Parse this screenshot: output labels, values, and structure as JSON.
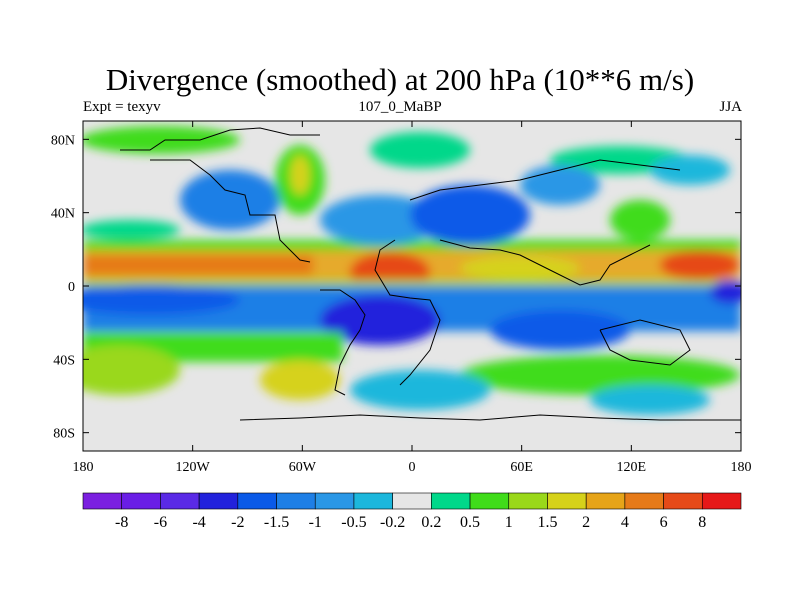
{
  "title": "Divergence (smoothed) at 200 hPa (10**6 m/s)",
  "subtitle_left": "Expt = texyv",
  "subtitle_center": "107_0_MaBP",
  "subtitle_right": "JJA",
  "map": {
    "lon_range": [
      -180,
      180
    ],
    "lat_range": [
      -90,
      90
    ],
    "x_ticks": [
      {
        "lon": -180,
        "label": "180"
      },
      {
        "lon": -120,
        "label": "120W"
      },
      {
        "lon": -60,
        "label": "60W"
      },
      {
        "lon": 0,
        "label": "0"
      },
      {
        "lon": 60,
        "label": "60E"
      },
      {
        "lon": 120,
        "label": "120E"
      },
      {
        "lon": 180,
        "label": "180"
      }
    ],
    "y_ticks": [
      {
        "lat": 80,
        "label": "80N"
      },
      {
        "lat": 40,
        "label": "40N"
      },
      {
        "lat": 0,
        "label": "0"
      },
      {
        "lat": -40,
        "label": "40S"
      },
      {
        "lat": -80,
        "label": "80S"
      }
    ],
    "background_color": "#e6e6e6",
    "coastline_color": "#000000"
  },
  "colorbar": {
    "colors": [
      "#7b1fe0",
      "#6a1ee6",
      "#5a2ae6",
      "#2222dc",
      "#0a5ae8",
      "#1e7fe6",
      "#2a97e6",
      "#1cb7dc",
      "#e6e6e6",
      "#00d88a",
      "#40dc1a",
      "#9ad81a",
      "#d6d21a",
      "#e6a418",
      "#e67a18",
      "#e64a18",
      "#e61818"
    ],
    "labels": [
      "-8",
      "-6",
      "-4",
      "-2",
      "-1.5",
      "-1",
      "-0.5",
      "-0.2",
      "0.2",
      "0.5",
      "1",
      "1.5",
      "2",
      "4",
      "6",
      "8"
    ]
  }
}
